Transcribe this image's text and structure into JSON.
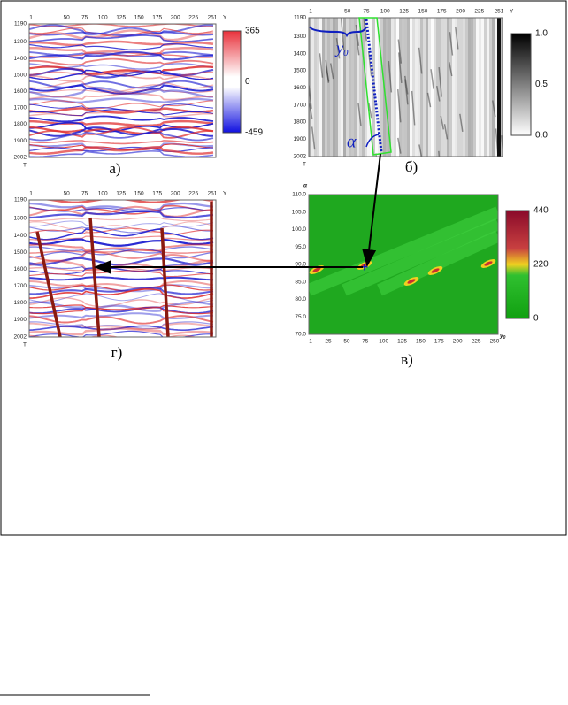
{
  "panels": [
    {
      "label": "а)",
      "x_ticks": [
        "1",
        "50",
        "75",
        "100",
        "125",
        "150",
        "175",
        "200",
        "225",
        "251"
      ],
      "x_axis": "Y",
      "y_ticks": [
        "1190",
        "1300",
        "1400",
        "1500",
        "1600",
        "1700",
        "1800",
        "1900",
        "2002"
      ],
      "y_axis": "T",
      "colorbar": [
        "365",
        "0",
        "-459"
      ]
    },
    {
      "label": "б)",
      "x_ticks": [
        "1",
        "50",
        "75",
        "100",
        "125",
        "150",
        "175",
        "200",
        "225",
        "251"
      ],
      "x_axis": "Y",
      "y_ticks": [
        "1190",
        "1300",
        "1400",
        "1500",
        "1600",
        "1700",
        "1800",
        "1900",
        "2002"
      ],
      "y_axis": "T",
      "colorbar": [
        "1.0",
        "0.5",
        "0.0"
      ],
      "annotations": {
        "offset": "y",
        "offset_sub": "0",
        "angle": "α"
      }
    },
    {
      "label": "в)",
      "x_ticks": [
        "1",
        "25",
        "50",
        "75",
        "100",
        "125",
        "150",
        "175",
        "200",
        "225",
        "250"
      ],
      "x_axis": "y",
      "x_axis_sub": "0",
      "y_ticks": [
        "110.0",
        "105.0",
        "100.0",
        "95.0",
        "90.0",
        "85.0",
        "80.0",
        "75.0",
        "70.0"
      ],
      "y_axis": "α",
      "colorbar": [
        "440",
        "220",
        "0"
      ]
    },
    {
      "label": "г)",
      "x_ticks": [
        "1",
        "50",
        "75",
        "100",
        "125",
        "150",
        "175",
        "200",
        "225",
        "251"
      ],
      "x_axis": "Y",
      "y_ticks": [
        "1190",
        "1300",
        "1400",
        "1500",
        "1600",
        "1700",
        "1800",
        "1900",
        "2002"
      ],
      "y_axis": "T"
    }
  ]
}
